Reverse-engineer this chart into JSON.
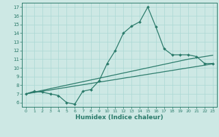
{
  "xlabel": "Humidex (Indice chaleur)",
  "background_color": "#cde8e4",
  "line_color": "#2a7a6a",
  "xlim": [
    -0.5,
    23.5
  ],
  "ylim": [
    5.5,
    17.5
  ],
  "xticks": [
    0,
    1,
    2,
    3,
    4,
    5,
    6,
    7,
    8,
    9,
    10,
    11,
    12,
    13,
    14,
    15,
    16,
    17,
    18,
    19,
    20,
    21,
    22,
    23
  ],
  "yticks": [
    6,
    7,
    8,
    9,
    10,
    11,
    12,
    13,
    14,
    15,
    16,
    17
  ],
  "line1_x": [
    0,
    1,
    2,
    3,
    4,
    5,
    6,
    7,
    8,
    9,
    10,
    11,
    12,
    13,
    14,
    15,
    16,
    17,
    18,
    19,
    20,
    21,
    22,
    23
  ],
  "line1_y": [
    7.0,
    7.3,
    7.2,
    7.0,
    6.8,
    6.0,
    5.8,
    7.3,
    7.5,
    8.5,
    10.5,
    12.0,
    14.0,
    14.8,
    15.3,
    17.0,
    14.7,
    12.2,
    11.5,
    11.5,
    11.5,
    11.3,
    10.5,
    10.5
  ],
  "line2_x": [
    0,
    1,
    2,
    3,
    4,
    5,
    6,
    7,
    8,
    9,
    10,
    11,
    12,
    13,
    14,
    15,
    16,
    17,
    18,
    19,
    20,
    21,
    22,
    23
  ],
  "line2_y": [
    7.0,
    7.15,
    7.3,
    7.45,
    7.6,
    7.75,
    7.9,
    8.05,
    8.2,
    8.35,
    8.5,
    8.65,
    8.8,
    8.95,
    9.1,
    9.25,
    9.4,
    9.55,
    9.7,
    9.85,
    10.0,
    10.15,
    10.3,
    10.45
  ],
  "line3_x": [
    0,
    1,
    2,
    3,
    4,
    5,
    6,
    7,
    8,
    9,
    10,
    11,
    12,
    13,
    14,
    15,
    16,
    17,
    18,
    19,
    20,
    21,
    22,
    23
  ],
  "line3_y": [
    7.0,
    7.2,
    7.4,
    7.6,
    7.8,
    8.0,
    8.2,
    8.4,
    8.6,
    8.8,
    9.0,
    9.2,
    9.4,
    9.6,
    9.8,
    10.0,
    10.2,
    10.4,
    10.6,
    10.8,
    11.0,
    11.15,
    11.3,
    11.45
  ]
}
